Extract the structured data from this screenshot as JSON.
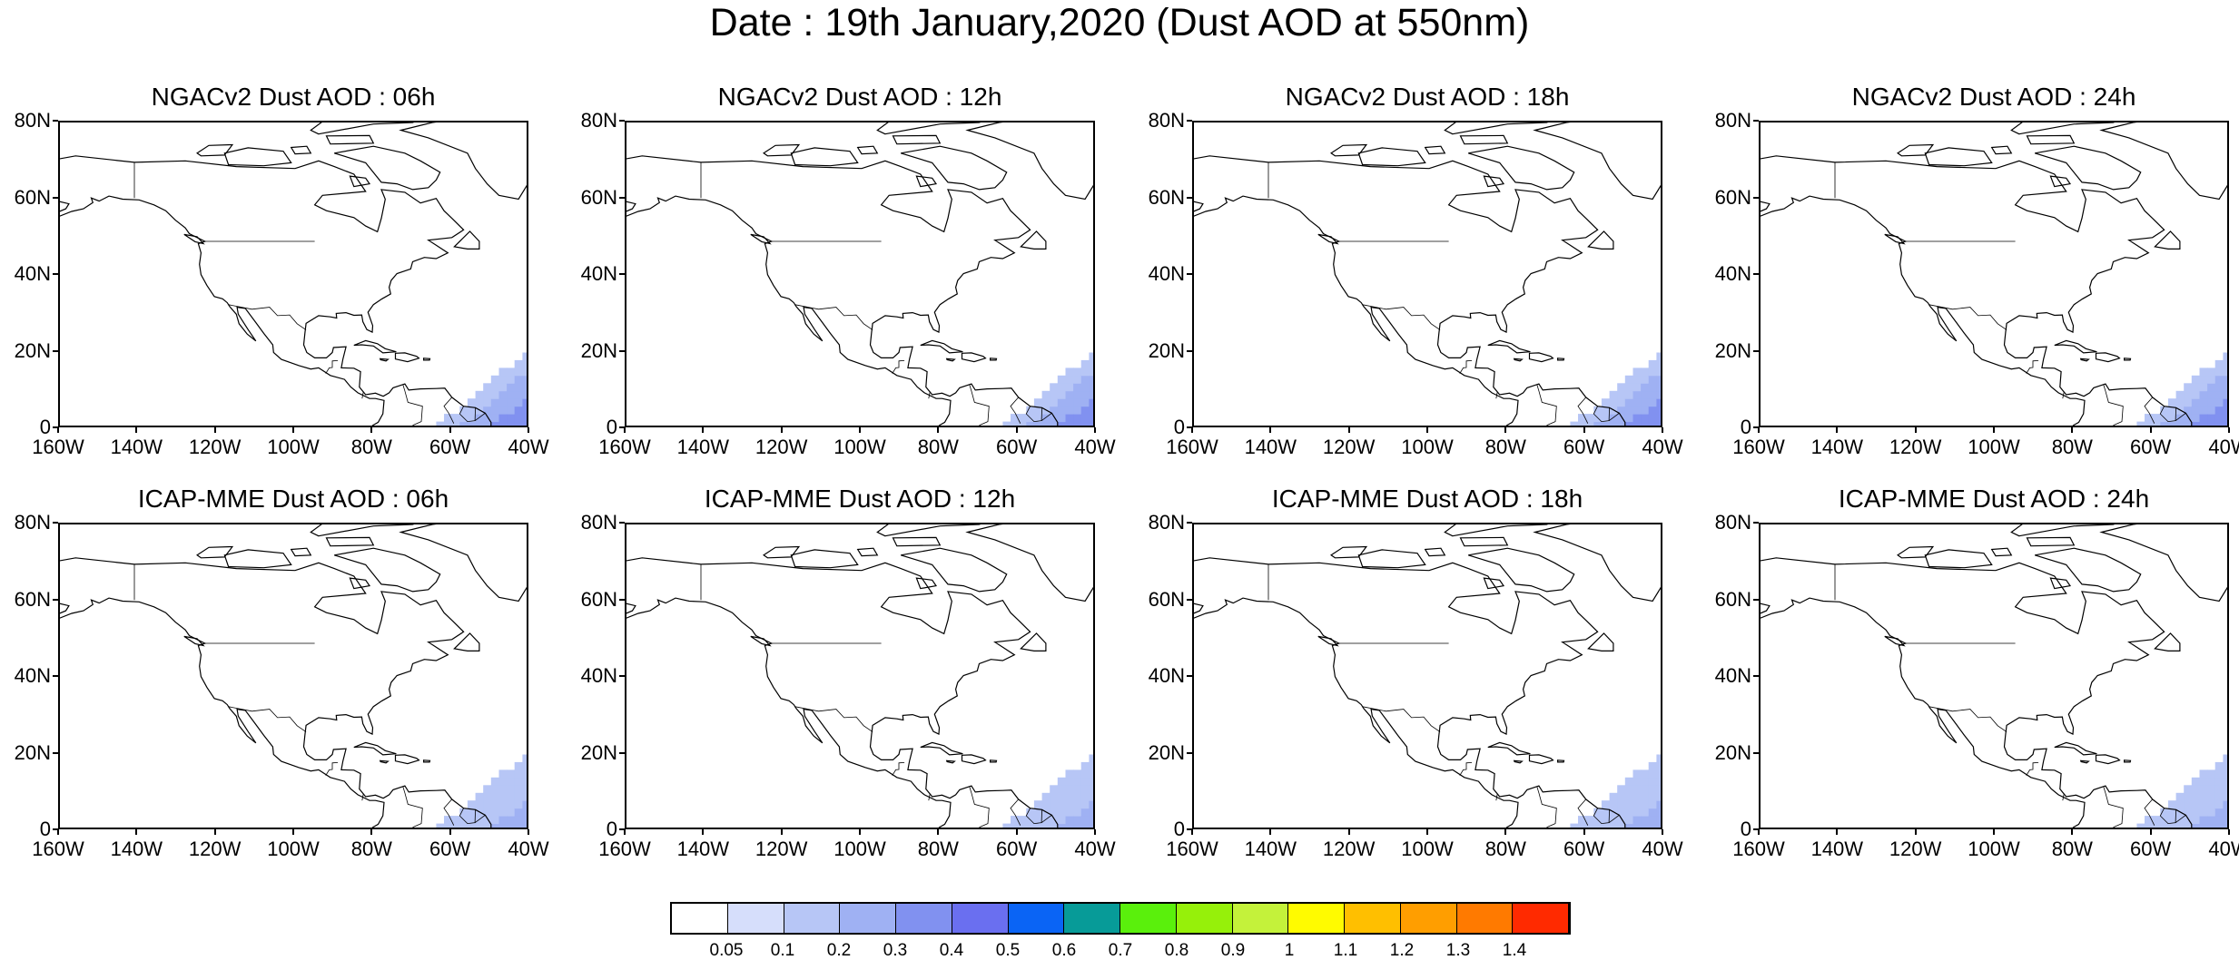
{
  "title": "Date : 19th January,2020 (Dust AOD at 550nm)",
  "lat_labels": [
    "80N",
    "60N",
    "40N",
    "20N",
    "0"
  ],
  "lon_labels": [
    "160W",
    "140W",
    "120W",
    "100W",
    "80W",
    "60W",
    "40W"
  ],
  "rows": [
    {
      "model": "NGACv2",
      "panels": [
        {
          "title": "NGACv2 Dust AOD : 06h",
          "plume_level": 0.3
        },
        {
          "title": "NGACv2 Dust AOD : 12h",
          "plume_level": 0.3
        },
        {
          "title": "NGACv2 Dust AOD : 18h",
          "plume_level": 0.3
        },
        {
          "title": "NGACv2 Dust AOD : 24h",
          "plume_level": 0.3
        }
      ]
    },
    {
      "model": "ICAP-MME",
      "panels": [
        {
          "title": "ICAP-MME Dust AOD : 06h",
          "plume_level": 0.2
        },
        {
          "title": "ICAP-MME Dust AOD : 12h",
          "plume_level": 0.2
        },
        {
          "title": "ICAP-MME Dust AOD : 18h",
          "plume_level": 0.2
        },
        {
          "title": "ICAP-MME Dust AOD : 24h",
          "plume_level": 0.2
        }
      ]
    }
  ],
  "legend": {
    "labels": [
      "0.05",
      "0.1",
      "0.2",
      "0.3",
      "0.4",
      "0.5",
      "0.6",
      "0.7",
      "0.8",
      "0.9",
      "1",
      "1.1",
      "1.2",
      "1.3",
      "1.4"
    ],
    "colors": [
      "#ffffff",
      "#d6defb",
      "#b7c6f6",
      "#9fb1f3",
      "#8191f0",
      "#6a6ff0",
      "#0a64f5",
      "#079b98",
      "#5af00c",
      "#96f00a",
      "#c4f23a",
      "#fffb00",
      "#ffbf00",
      "#ff9e00",
      "#ff7a00",
      "#ff2a00"
    ]
  }
}
